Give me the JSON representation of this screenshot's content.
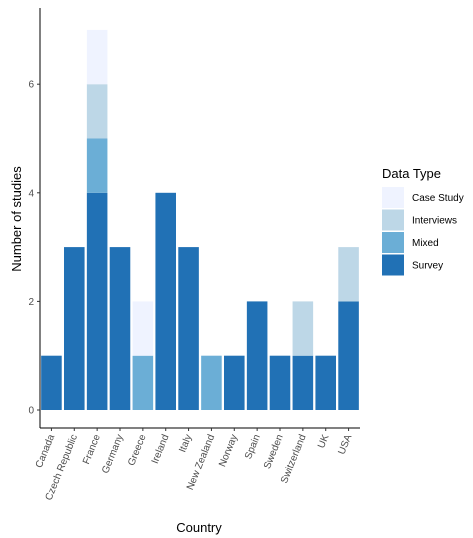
{
  "chart_data": {
    "type": "bar",
    "stacked": true,
    "xlabel": "Country",
    "ylabel": "Number of studies",
    "ylim": [
      0,
      7.2
    ],
    "yticks": [
      0,
      2,
      4,
      6
    ],
    "grid": false,
    "legend_position": "right",
    "legend_title": "Data Type",
    "categories": [
      "Canada",
      "Czech Republic",
      "France",
      "Germany",
      "Greece",
      "Ireland",
      "Italy",
      "New Zealand",
      "Norway",
      "Spain",
      "Sweden",
      "Switzerland",
      "UK",
      "USA"
    ],
    "series": [
      {
        "name": "Survey",
        "color": "#2171b5",
        "values": [
          1,
          3,
          4,
          3,
          0,
          4,
          3,
          0,
          1,
          2,
          1,
          1,
          1,
          2
        ]
      },
      {
        "name": "Mixed",
        "color": "#6baed6",
        "values": [
          0,
          0,
          1,
          0,
          1,
          0,
          0,
          1,
          0,
          0,
          0,
          0,
          0,
          0
        ]
      },
      {
        "name": "Interviews",
        "color": "#bdd7e7",
        "values": [
          0,
          0,
          1,
          0,
          0,
          0,
          0,
          0,
          0,
          0,
          0,
          1,
          0,
          1
        ]
      },
      {
        "name": "Case Study",
        "color": "#eff3ff",
        "values": [
          0,
          0,
          1,
          0,
          1,
          0,
          0,
          0,
          0,
          0,
          0,
          0,
          0,
          0
        ]
      }
    ],
    "legend_order": [
      "Case Study",
      "Interviews",
      "Mixed",
      "Survey"
    ]
  }
}
